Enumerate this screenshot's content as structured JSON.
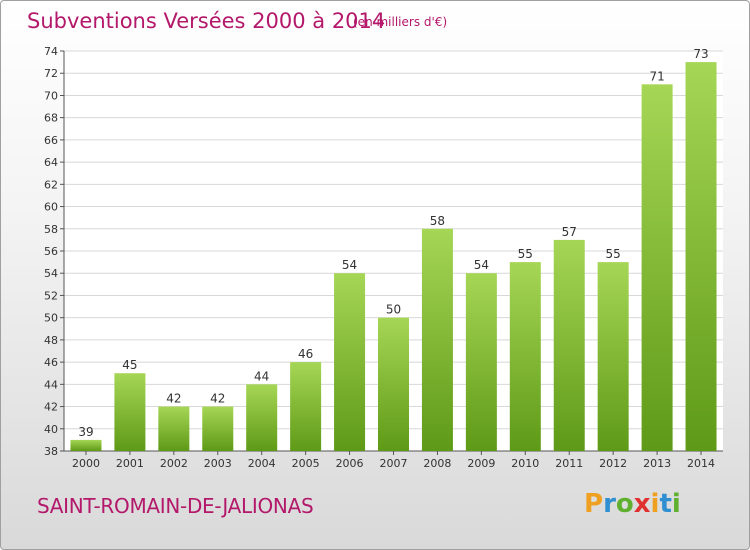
{
  "title": "Subventions Versées 2000 à 2014",
  "subtitle": "(en milliers d'€)",
  "place": "SAINT-ROMAIN-DE-JALIONAS",
  "logo": {
    "letters": [
      "P",
      "r",
      "o",
      "x",
      "i",
      "t",
      "i"
    ],
    "colors": [
      "#f0a020",
      "#2f8fd0",
      "#60b030",
      "#e03030",
      "#f0a020",
      "#2f8fd0",
      "#60b030"
    ]
  },
  "colors": {
    "bar_light": "#a6d655",
    "bar_dark": "#5e9a17",
    "text": "#b3186a",
    "grid": "#d8d8d8"
  },
  "chart_data": {
    "type": "bar",
    "title": "Subventions Versées 2000 à 2014",
    "xlabel": "",
    "ylabel": "",
    "categories": [
      "2000",
      "2001",
      "2002",
      "2003",
      "2004",
      "2005",
      "2006",
      "2007",
      "2008",
      "2009",
      "2010",
      "2011",
      "2012",
      "2013",
      "2014"
    ],
    "values": [
      39,
      45,
      42,
      42,
      44,
      46,
      54,
      50,
      58,
      54,
      55,
      57,
      55,
      71,
      73
    ],
    "ylim": [
      38,
      74
    ],
    "yticks": [
      38,
      40,
      42,
      44,
      46,
      48,
      50,
      52,
      54,
      56,
      58,
      60,
      62,
      64,
      66,
      68,
      70,
      72,
      74
    ],
    "grid": true,
    "legend": "none"
  }
}
